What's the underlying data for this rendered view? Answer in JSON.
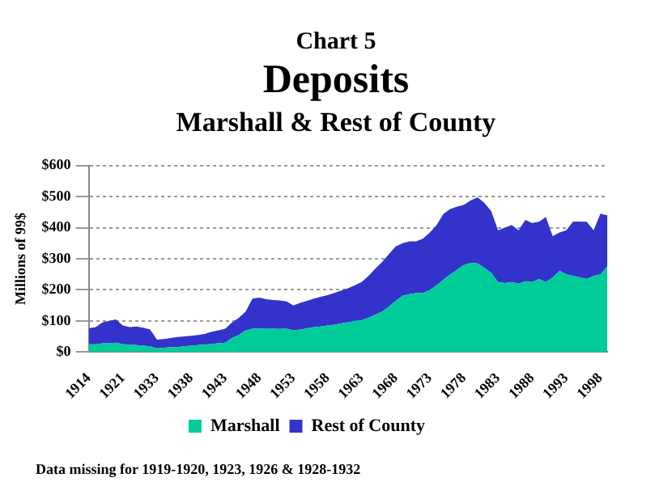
{
  "chart_data": {
    "type": "area",
    "title": "Deposits",
    "subtitle": "Marshall & Rest of County",
    "ylabel": "Millions of 99$",
    "annotations": [
      "Chart 5",
      "Data missing for 1919-1920, 1923, 1926 & 1928-1932"
    ],
    "categories": [
      "1914",
      null,
      null,
      null,
      null,
      "1921",
      null,
      null,
      null,
      null,
      "1933",
      null,
      null,
      null,
      null,
      "1938",
      null,
      null,
      null,
      null,
      "1943",
      null,
      null,
      null,
      null,
      "1948",
      null,
      null,
      null,
      null,
      "1953",
      null,
      null,
      null,
      null,
      "1958",
      null,
      null,
      null,
      null,
      "1963",
      null,
      null,
      null,
      null,
      "1968",
      null,
      null,
      null,
      null,
      "1973",
      null,
      null,
      null,
      null,
      "1978",
      null,
      null,
      null,
      null,
      "1983",
      null,
      null,
      null,
      null,
      "1988",
      null,
      null,
      null,
      null,
      "1993",
      null,
      null,
      null,
      null,
      "1998",
      null
    ],
    "stacked": true,
    "series": [
      {
        "name": "Marshall",
        "color": "#00cc99",
        "values": [
          25,
          25,
          28,
          28,
          30,
          25,
          24,
          22,
          20,
          18,
          12,
          14,
          15,
          16,
          18,
          20,
          22,
          24,
          26,
          28,
          30,
          45,
          55,
          70,
          75,
          76,
          74,
          75,
          74,
          75,
          70,
          72,
          76,
          80,
          82,
          85,
          88,
          92,
          96,
          100,
          102,
          110,
          120,
          130,
          146,
          165,
          181,
          186,
          190,
          190,
          200,
          215,
          233,
          250,
          265,
          280,
          287,
          285,
          270,
          255,
          225,
          222,
          225,
          220,
          228,
          225,
          235,
          225,
          240,
          262,
          250,
          245,
          240,
          235,
          245,
          250,
          275
        ]
      },
      {
        "name": "Rest of County",
        "color": "#3333cc",
        "values": [
          51,
          55,
          67,
          72,
          75,
          60,
          56,
          60,
          58,
          54,
          28,
          28,
          30,
          32,
          32,
          32,
          33,
          34,
          39,
          42,
          45,
          50,
          55,
          60,
          97,
          99,
          96,
          92,
          92,
          88,
          80,
          86,
          89,
          92,
          96,
          98,
          102,
          106,
          109,
          115,
          123,
          135,
          148,
          160,
          169,
          175,
          169,
          170,
          166,
          175,
          185,
          194,
          212,
          210,
          203,
          194,
          201,
          213,
          210,
          198,
          167,
          178,
          184,
          172,
          197,
          190,
          184,
          210,
          133,
          123,
          142,
          175,
          180,
          184,
          147,
          195,
          165
        ]
      }
    ],
    "ylim": [
      0,
      600
    ],
    "yticks": [
      {
        "value": 0,
        "label": "$0"
      },
      {
        "value": 100,
        "label": "$100"
      },
      {
        "value": 200,
        "label": "$200"
      },
      {
        "value": 300,
        "label": "$300"
      },
      {
        "value": 400,
        "label": "$400"
      },
      {
        "value": 500,
        "label": "$500"
      },
      {
        "value": 600,
        "label": "$600"
      }
    ],
    "grid": "y",
    "legend": "bottom"
  }
}
